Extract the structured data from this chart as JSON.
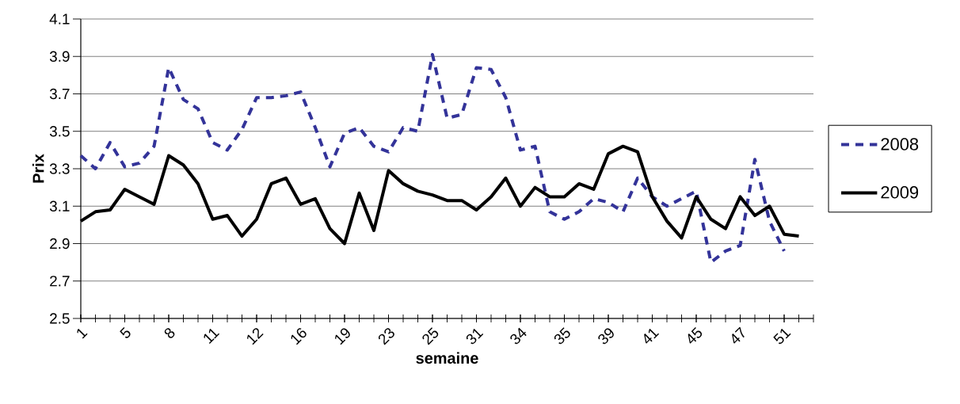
{
  "chart_data": {
    "type": "line",
    "xlabel": "semaine",
    "ylabel": "Prix",
    "categories": [
      "1",
      null,
      null,
      "5",
      null,
      null,
      "8",
      null,
      null,
      "11",
      null,
      null,
      "12",
      null,
      null,
      "16",
      null,
      null,
      "19",
      null,
      null,
      "23",
      null,
      null,
      "25",
      null,
      null,
      "31",
      null,
      null,
      "34",
      null,
      null,
      "35",
      null,
      null,
      "39",
      null,
      null,
      "41",
      null,
      null,
      "45",
      null,
      null,
      "47",
      null,
      null,
      "51",
      null,
      null
    ],
    "series": [
      {
        "name": "2008",
        "color": "#333399",
        "line_style": "dashed",
        "values": [
          3.37,
          3.3,
          3.44,
          3.31,
          3.33,
          3.42,
          3.84,
          3.67,
          3.62,
          3.44,
          3.4,
          3.51,
          3.68,
          3.68,
          3.69,
          3.71,
          3.52,
          3.31,
          3.49,
          3.52,
          3.42,
          3.39,
          3.52,
          3.5,
          3.91,
          3.57,
          3.59,
          3.84,
          3.83,
          3.68,
          3.4,
          3.42,
          3.07,
          3.03,
          3.07,
          3.14,
          3.12,
          3.07,
          3.25,
          3.15,
          3.1,
          3.14,
          3.18,
          2.8,
          2.86,
          2.89,
          3.35,
          3.02,
          2.86,
          null,
          null
        ]
      },
      {
        "name": "2009",
        "color": "#000000",
        "line_style": "solid",
        "values": [
          3.02,
          3.07,
          3.08,
          3.19,
          3.15,
          3.11,
          3.37,
          3.32,
          3.22,
          3.03,
          3.05,
          2.94,
          3.03,
          3.22,
          3.25,
          3.11,
          3.14,
          2.98,
          2.9,
          3.17,
          2.97,
          3.29,
          3.22,
          3.18,
          3.16,
          3.13,
          3.13,
          3.08,
          3.15,
          3.25,
          3.1,
          3.2,
          3.15,
          3.15,
          3.22,
          3.19,
          3.38,
          3.42,
          3.39,
          3.15,
          3.02,
          2.93,
          3.15,
          3.03,
          2.98,
          3.15,
          3.05,
          3.1,
          2.95,
          2.94,
          null
        ]
      }
    ],
    "ylim": [
      2.5,
      4.1
    ],
    "yticks": [
      2.5,
      2.7,
      2.9,
      3.1,
      3.3,
      3.5,
      3.7,
      3.9,
      4.1
    ],
    "grid": "y",
    "legend": "right"
  }
}
